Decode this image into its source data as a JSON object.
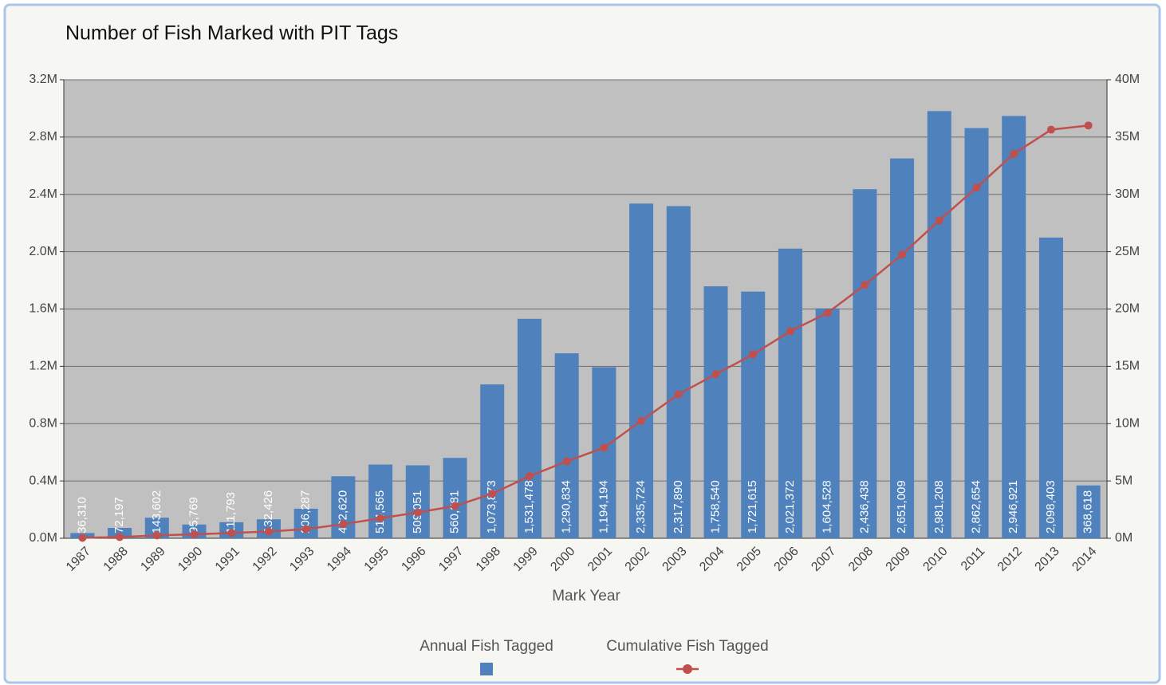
{
  "chart_data": {
    "type": "bar",
    "title": "Number of Fish Marked with PIT Tags",
    "x_label": "Mark Year",
    "categories": [
      "1987",
      "1988",
      "1989",
      "1990",
      "1991",
      "1992",
      "1993",
      "1994",
      "1995",
      "1996",
      "1997",
      "1998",
      "1999",
      "2000",
      "2001",
      "2002",
      "2003",
      "2004",
      "2005",
      "2006",
      "2007",
      "2008",
      "2009",
      "2010",
      "2011",
      "2012",
      "2013",
      "2014"
    ],
    "series": [
      {
        "name": "Annual Fish Tagged",
        "type": "bar",
        "color": "#4f81bd",
        "values": [
          36310,
          72197,
          143602,
          95769,
          111793,
          132426,
          206287,
          432620,
          514565,
          509051,
          560881,
          1073873,
          1531478,
          1290834,
          1194194,
          2335724,
          2317890,
          1758540,
          1721615,
          2021372,
          1604528,
          2436438,
          2651009,
          2981208,
          2862654,
          2946921,
          2098403,
          368618
        ],
        "value_labels": [
          "36,310",
          "72,197",
          "143,602",
          "95,769",
          "111,793",
          "132,426",
          "206,287",
          "432,620",
          "514,565",
          "509,051",
          "560,881",
          "1,073,873",
          "1,531,478",
          "1,290,834",
          "1,194,194",
          "2,335,724",
          "2,317,890",
          "1,758,540",
          "1,721,615",
          "2,021,372",
          "1,604,528",
          "2,436,438",
          "2,651,009",
          "2,981,208",
          "2,862,654",
          "2,946,921",
          "2,098,403",
          "368,618"
        ]
      },
      {
        "name": "Cumulative Fish Tagged",
        "type": "line",
        "color": "#c0504d",
        "axis": "y2",
        "values": [
          36310,
          108507,
          252109,
          347878,
          459671,
          592097,
          798384,
          1231004,
          1745569,
          2254620,
          2815501,
          3889374,
          5420852,
          6711686,
          7905880,
          10241604,
          12559494,
          14318034,
          16039649,
          18061021,
          19665549,
          22101987,
          24752996,
          27734204,
          30596858,
          33543779,
          35642182,
          36010800
        ]
      }
    ],
    "ylim": [
      0,
      3200000
    ],
    "yticks": [
      {
        "value": 0,
        "label": "0.0M"
      },
      {
        "value": 400000,
        "label": "0.4M"
      },
      {
        "value": 800000,
        "label": "0.8M"
      },
      {
        "value": 1200000,
        "label": "1.2M"
      },
      {
        "value": 1600000,
        "label": "1.6M"
      },
      {
        "value": 2000000,
        "label": "2.0M"
      },
      {
        "value": 2400000,
        "label": "2.4M"
      },
      {
        "value": 2800000,
        "label": "2.8M"
      },
      {
        "value": 3200000,
        "label": "3.2M"
      }
    ],
    "y2lim": [
      0,
      40000000
    ],
    "y2ticks": [
      {
        "value": 0,
        "label": "0M"
      },
      {
        "value": 5000000,
        "label": "5M"
      },
      {
        "value": 10000000,
        "label": "10M"
      },
      {
        "value": 15000000,
        "label": "15M"
      },
      {
        "value": 20000000,
        "label": "20M"
      },
      {
        "value": 25000000,
        "label": "25M"
      },
      {
        "value": 30000000,
        "label": "30M"
      },
      {
        "value": 35000000,
        "label": "35M"
      },
      {
        "value": 40000000,
        "label": "40M"
      }
    ],
    "grid": true,
    "legend": "bottom"
  }
}
